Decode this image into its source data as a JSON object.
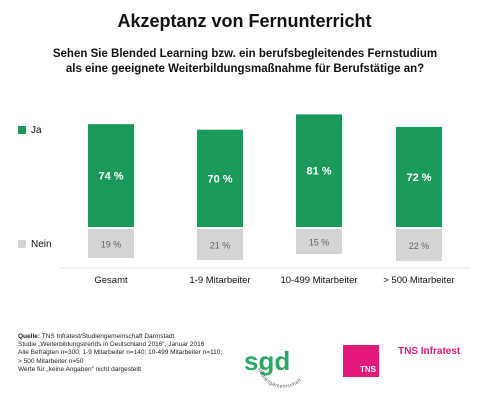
{
  "title": "Akzeptanz von Fernunterricht",
  "question_line1": "Sehen Sie Blended Learning bzw. ein berufsbegleitendes Fernstudium",
  "question_line2": "als eine geeignete Weiterbildungsmaßnahme für Berufstätige an?",
  "colors": {
    "ja": "#1a9a5a",
    "nein": "#d4d4d4",
    "tns": "#e2187b",
    "sgd": "#2aa763"
  },
  "chart_data": {
    "type": "bar",
    "stacked": true,
    "categories": [
      "Gesamt",
      "1-9 Mitarbeiter",
      "10-499 Mitarbeiter",
      "> 500 Mitarbeiter"
    ],
    "series": [
      {
        "name": "Ja",
        "values": [
          74,
          70,
          81,
          72
        ],
        "labels": [
          "74 %",
          "70 %",
          "81 %",
          "72 %"
        ]
      },
      {
        "name": "Nein",
        "values": [
          19,
          21,
          15,
          22
        ],
        "labels": [
          "19 %",
          "21 %",
          "15 %",
          "22 %"
        ]
      }
    ],
    "legend": [
      "Ja",
      "Nein"
    ],
    "legend_position": "left",
    "grid": false
  },
  "source": {
    "label": "Quelle:",
    "line1": "TNS Infratest/Studiengemeinschaft Darmstadt",
    "line2": "Studie „Weiterbildungstrends in Deutschland 2016“, Januar 2016",
    "line3": "Alle Befragten n=300; 1-9 Mitarbeiter n=140; 10-499 Mitarbeiter n=110;",
    "line4": "> 500 Mitarbeiter n=50",
    "line5": "Werte für „keine Angaben“ nicht dargestellt"
  },
  "logos": {
    "sgd_text": "sgd",
    "sgd_arc": "studiengemeinschaft",
    "sgd_arc2": "darmstadt",
    "tns_box": "TNS",
    "tns_infratest": "TNS Infratest"
  }
}
